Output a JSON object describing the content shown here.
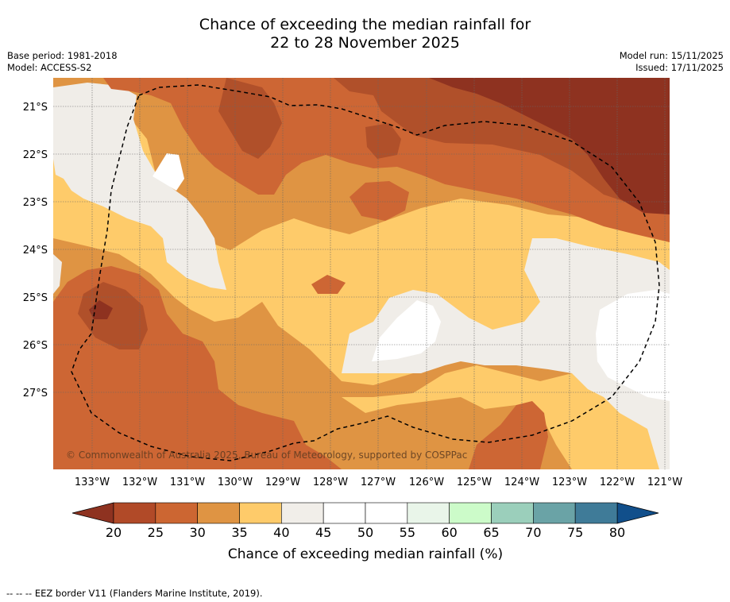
{
  "title": {
    "line1": "Chance of exceeding the median rainfall for",
    "line2": "22 to 28 November 2025"
  },
  "meta": {
    "base_period": "Base period: 1981-2018",
    "model": "Model: ACCESS-S2",
    "model_run": "Model run: 15/11/2025",
    "issued": "Issued: 17/11/2025"
  },
  "map": {
    "lat_labels": [
      "21°S",
      "22°S",
      "23°S",
      "24°S",
      "25°S",
      "26°S",
      "27°S"
    ],
    "lon_labels": [
      "133°W",
      "132°W",
      "131°W",
      "130°W",
      "129°W",
      "128°W",
      "127°W",
      "126°W",
      "125°W",
      "124°W",
      "123°W",
      "122°W",
      "121°W"
    ],
    "copyright": "© Commonwealth of Australia 2025, Bureau of Meteorology, supported by COSPPac",
    "colors": {
      "lt20": "#8e3220",
      "c20_25": "#b0502a",
      "c25_30": "#cd6634",
      "c30_35": "#df9443",
      "c35_40": "#fecb6a",
      "c40_45": "#f0ede8",
      "c45_55": "#ffffff"
    }
  },
  "colorbar": {
    "ticks": [
      "20",
      "25",
      "30",
      "35",
      "40",
      "45",
      "50",
      "55",
      "60",
      "65",
      "70",
      "75",
      "80"
    ],
    "colors": [
      "#b14a28",
      "#cc6632",
      "#df9443",
      "#fecb6a",
      "#f1eee9",
      "#ffffff",
      "#ffffff",
      "#e9f5e9",
      "#ccfbc9",
      "#9bcfbb",
      "#6aa3a6",
      "#3f7b98"
    ],
    "under_color": "#8e3220",
    "over_color": "#114f8b",
    "label": "Chance of exceeding median rainfall (%)"
  },
  "footer": {
    "eez": "--  --  -- EEZ border V11 (Flanders Marine Institute, 2019)."
  }
}
